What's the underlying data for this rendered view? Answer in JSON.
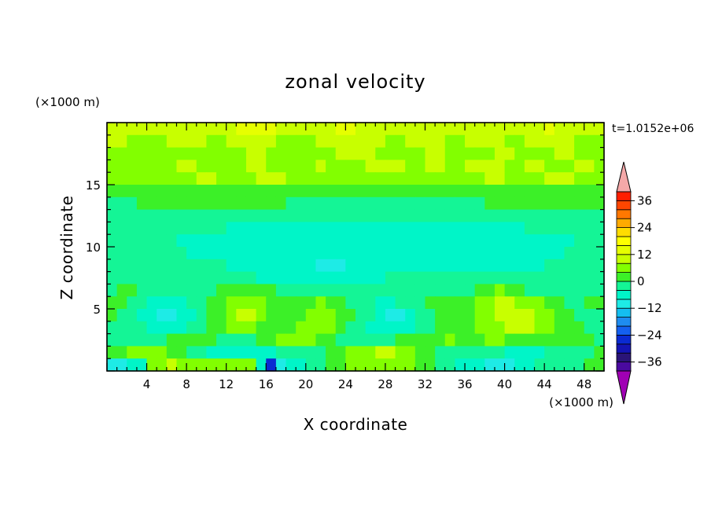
{
  "chart_data": {
    "type": "heatmap",
    "title": "zonal velocity",
    "xlabel": "X coordinate",
    "ylabel": "Z coordinate",
    "x_unit": "(×1000 m)",
    "y_unit": "(×1000 m)",
    "time_label": "t=1.0152e+06",
    "xlim": [
      0,
      50
    ],
    "ylim": [
      0,
      20
    ],
    "x_ticks": [
      4,
      8,
      12,
      16,
      20,
      24,
      28,
      32,
      36,
      40,
      44,
      48
    ],
    "y_ticks": [
      5,
      10,
      15
    ],
    "colorbar": {
      "levels": [
        -40,
        -36,
        -32,
        -28,
        -24,
        -20,
        -16,
        -12,
        -8,
        -4,
        0,
        4,
        8,
        12,
        16,
        20,
        24,
        28,
        32,
        36,
        40
      ],
      "tick_labels": [
        "36",
        "24",
        "12",
        "0",
        "−12",
        "−24",
        "−36"
      ],
      "tick_values": [
        36,
        24,
        12,
        0,
        -12,
        -24,
        -36
      ],
      "colors": [
        "#4a0aa0",
        "#2a1478",
        "#1414b4",
        "#0a2ad2",
        "#1460f0",
        "#1e8cf0",
        "#14bef0",
        "#1eebe6",
        "#00f5c8",
        "#14f596",
        "#3cf028",
        "#82ff00",
        "#c8ff00",
        "#e6ff00",
        "#ffff00",
        "#ffdc00",
        "#ffaa00",
        "#ff7800",
        "#ff4600",
        "#ff1e00"
      ],
      "under_color": "#a000b4",
      "over_color": "#f4a8a8"
    },
    "rows": [
      {
        "y": 19.5,
        "values": [
          9,
          10,
          10,
          11,
          10,
          9,
          9,
          10,
          11,
          11,
          10,
          9,
          10,
          12,
          13,
          12,
          12,
          11,
          10,
          9,
          9,
          10,
          11,
          12,
          12,
          11,
          10,
          10,
          9,
          9,
          10,
          11,
          11,
          10,
          9,
          9,
          10,
          11,
          11,
          10,
          9,
          9,
          10,
          11,
          12,
          11,
          10,
          9,
          9,
          9
        ]
      },
      {
        "y": 18.5,
        "values": [
          8,
          8,
          7,
          6,
          6,
          7,
          8,
          9,
          9,
          8,
          7,
          7,
          8,
          9,
          10,
          9,
          8,
          7,
          6,
          6,
          7,
          8,
          9,
          10,
          10,
          9,
          8,
          8,
          7,
          7,
          8,
          9,
          9,
          8,
          7,
          7,
          8,
          8,
          9,
          8,
          7,
          7,
          8,
          9,
          10,
          9,
          8,
          7,
          6,
          6
        ]
      },
      {
        "y": 17.5,
        "values": [
          6,
          6,
          5,
          5,
          6,
          6,
          7,
          7,
          6,
          6,
          5,
          5,
          6,
          7,
          8,
          8,
          7,
          6,
          6,
          5,
          5,
          6,
          7,
          8,
          9,
          9,
          8,
          7,
          6,
          6,
          7,
          7,
          8,
          8,
          7,
          6,
          6,
          7,
          7,
          8,
          8,
          7,
          6,
          6,
          7,
          8,
          8,
          7,
          6,
          6
        ]
      },
      {
        "y": 16.5,
        "values": [
          6,
          6,
          7,
          7,
          6,
          6,
          7,
          8,
          8,
          7,
          6,
          6,
          7,
          7,
          8,
          8,
          7,
          6,
          6,
          7,
          7,
          8,
          7,
          6,
          6,
          7,
          8,
          9,
          9,
          8,
          7,
          7,
          8,
          8,
          7,
          7,
          8,
          9,
          9,
          8,
          7,
          7,
          8,
          8,
          7,
          7,
          7,
          8,
          8,
          7
        ]
      },
      {
        "y": 15.5,
        "values": [
          5,
          5,
          6,
          6,
          6,
          5,
          5,
          6,
          7,
          8,
          8,
          7,
          6,
          6,
          7,
          9,
          9,
          8,
          7,
          6,
          6,
          6,
          6,
          5,
          5,
          6,
          6,
          7,
          7,
          6,
          6,
          6,
          7,
          7,
          6,
          6,
          6,
          7,
          8,
          8,
          7,
          6,
          6,
          7,
          9,
          9,
          8,
          7,
          6,
          6
        ]
      },
      {
        "y": 14.5,
        "values": [
          3,
          3,
          2,
          2,
          2,
          2,
          2,
          2,
          2,
          2,
          2,
          2,
          2,
          2,
          2,
          2,
          2,
          2,
          2,
          2,
          2,
          2,
          2,
          2,
          2,
          2,
          2,
          2,
          2,
          2,
          2,
          2,
          2,
          2,
          2,
          2,
          2,
          2,
          2,
          2,
          2,
          2,
          2,
          2,
          2,
          2,
          2,
          2,
          3,
          3
        ]
      },
      {
        "y": 13.5,
        "values": [
          -1,
          -1,
          -1,
          0,
          1,
          1,
          2,
          2,
          2,
          2,
          1,
          1,
          1,
          1,
          1,
          1,
          0,
          0,
          -1,
          -1,
          -1,
          -1,
          -1,
          -1,
          -2,
          -2,
          -2,
          -2,
          -2,
          -2,
          -2,
          -2,
          -2,
          -2,
          -1,
          -1,
          -1,
          -1,
          1,
          1,
          1,
          1,
          1,
          1,
          1,
          1,
          1,
          1,
          0,
          0
        ]
      },
      {
        "y": 12.5,
        "values": [
          -2,
          -3,
          -3,
          -3,
          -3,
          -3,
          -2,
          -2,
          -2,
          -2,
          -3,
          -3,
          -3,
          -3,
          -3,
          -3,
          -3,
          -3,
          -3,
          -3,
          -3,
          -3,
          -3,
          -3,
          -3,
          -3,
          -3,
          -3,
          -3,
          -3,
          -3,
          -3,
          -3,
          -3,
          -3,
          -3,
          -3,
          -3,
          -3,
          -3,
          -3,
          -3,
          -3,
          -3,
          -3,
          -3,
          -3,
          -3,
          -2,
          -2
        ]
      },
      {
        "y": 11.5,
        "values": [
          -3,
          -4,
          -4,
          -4,
          -4,
          -4,
          -4,
          -4,
          -4,
          -4,
          -4,
          -4,
          -5,
          -5,
          -5,
          -5,
          -5,
          -5,
          -5,
          -5,
          -5,
          -5,
          -5,
          -5,
          -5,
          -5,
          -5,
          -5,
          -5,
          -5,
          -5,
          -5,
          -5,
          -5,
          -5,
          -5,
          -5,
          -5,
          -5,
          -5,
          -5,
          -5,
          -4,
          -4,
          -4,
          -4,
          -4,
          -4,
          -4,
          -3
        ]
      },
      {
        "y": 10.5,
        "values": [
          -3,
          -4,
          -4,
          -4,
          -4,
          -4,
          -4,
          -5,
          -5,
          -5,
          -5,
          -5,
          -5,
          -5,
          -5,
          -6,
          -6,
          -6,
          -6,
          -6,
          -6,
          -6,
          -6,
          -6,
          -6,
          -6,
          -6,
          -6,
          -6,
          -6,
          -6,
          -6,
          -6,
          -6,
          -6,
          -6,
          -6,
          -6,
          -6,
          -6,
          -6,
          -5,
          -5,
          -5,
          -5,
          -5,
          -5,
          -4,
          -4,
          -4
        ]
      },
      {
        "y": 9.5,
        "values": [
          -3,
          -3,
          -4,
          -4,
          -4,
          -4,
          -4,
          -4,
          -5,
          -5,
          -5,
          -5,
          -5,
          -5,
          -5,
          -6,
          -6,
          -6,
          -6,
          -6,
          -7,
          -7,
          -7,
          -7,
          -6,
          -6,
          -6,
          -6,
          -6,
          -6,
          -6,
          -6,
          -6,
          -6,
          -6,
          -6,
          -6,
          -6,
          -6,
          -5,
          -5,
          -5,
          -5,
          -5,
          -5,
          -5,
          -4,
          -4,
          -4,
          -4
        ]
      },
      {
        "y": 8.5,
        "values": [
          -3,
          -3,
          -3,
          -3,
          -3,
          -4,
          -4,
          -4,
          -4,
          -4,
          -4,
          -4,
          -5,
          -5,
          -5,
          -6,
          -7,
          -7,
          -7,
          -7,
          -7,
          -9,
          -9,
          -9,
          -7,
          -7,
          -6,
          -6,
          -5,
          -5,
          -5,
          -5,
          -5,
          -5,
          -5,
          -5,
          -5,
          -5,
          -5,
          -5,
          -5,
          -5,
          -5,
          -5,
          -4,
          -4,
          -4,
          -4,
          -3,
          -3
        ]
      },
      {
        "y": 7.5,
        "values": [
          -2,
          -2,
          -3,
          -3,
          -3,
          -3,
          -3,
          -3,
          -3,
          -4,
          -4,
          -3,
          -2,
          -2,
          -3,
          -5,
          -5,
          -5,
          -6,
          -6,
          -7,
          -7,
          -8,
          -6,
          -5,
          -5,
          -5,
          -5,
          -4,
          -4,
          -4,
          -4,
          -4,
          -4,
          -4,
          -4,
          -4,
          -4,
          -3,
          -3,
          -2,
          -2,
          -2,
          -3,
          -3,
          -3,
          -3,
          -3,
          -2,
          -2
        ]
      },
      {
        "y": 6.5,
        "values": [
          -1,
          1,
          1,
          -2,
          -3,
          -3,
          -4,
          -4,
          -3,
          -3,
          -2,
          2,
          2,
          2,
          1,
          1,
          2,
          -2,
          -3,
          -3,
          -3,
          -3,
          -3,
          -3,
          -2,
          -1,
          -1,
          -1,
          -2,
          -2,
          -3,
          -3,
          -3,
          -3,
          -2,
          -2,
          -1,
          2,
          3,
          4,
          3,
          2,
          -1,
          -2,
          -3,
          -3,
          -2,
          -2,
          -1,
          -1
        ]
      },
      {
        "y": 5.5,
        "values": [
          1,
          1,
          -2,
          -4,
          -5,
          -5,
          -6,
          -6,
          -4,
          -2,
          1,
          3,
          5,
          6,
          6,
          5,
          3,
          3,
          2,
          2,
          3,
          4,
          3,
          1,
          -1,
          -2,
          -3,
          -5,
          -5,
          -4,
          -3,
          -2,
          1,
          2,
          3,
          2,
          3,
          5,
          7,
          8,
          8,
          7,
          6,
          4,
          3,
          1,
          -1,
          -1,
          1,
          1
        ]
      },
      {
        "y": 4.5,
        "values": [
          1,
          -1,
          -3,
          -5,
          -7,
          -9,
          -9,
          -7,
          -5,
          -3,
          1,
          3,
          6,
          8,
          8,
          6,
          3,
          2,
          2,
          3,
          5,
          6,
          5,
          3,
          1,
          -2,
          -4,
          -7,
          -9,
          -9,
          -7,
          -4,
          -1,
          2,
          2,
          1,
          2,
          5,
          7,
          8,
          9,
          9,
          8,
          6,
          4,
          2,
          1,
          -1,
          -2,
          -1
        ]
      },
      {
        "y": 3.5,
        "values": [
          -1,
          -2,
          -3,
          -4,
          -5,
          -6,
          -6,
          -5,
          -3,
          -1,
          1,
          3,
          4,
          5,
          4,
          2,
          1,
          2,
          3,
          4,
          5,
          5,
          4,
          2,
          -1,
          -3,
          -5,
          -7,
          -8,
          -8,
          -6,
          -3,
          -1,
          1,
          1,
          1,
          2,
          4,
          6,
          7,
          8,
          8,
          8,
          6,
          4,
          2,
          1,
          1,
          -1,
          -1
        ]
      },
      {
        "y": 2.5,
        "values": [
          -1,
          -3,
          -4,
          -4,
          -3,
          -2,
          1,
          2,
          3,
          2,
          1,
          -2,
          -3,
          -2,
          -1,
          1,
          2,
          4,
          5,
          5,
          4,
          2,
          1,
          -1,
          -2,
          -3,
          -3,
          -2,
          -1,
          1,
          1,
          1,
          2,
          3,
          4,
          3,
          2,
          3,
          4,
          4,
          3,
          2,
          1,
          1,
          2,
          2,
          1,
          1,
          1,
          -1
        ]
      },
      {
        "y": 1.5,
        "values": [
          1,
          2,
          4,
          5,
          5,
          4,
          3,
          1,
          -1,
          -3,
          -5,
          -6,
          -6,
          -5,
          -7,
          -7,
          -5,
          -3,
          -2,
          -2,
          -1,
          -1,
          1,
          2,
          4,
          6,
          7,
          8,
          8,
          7,
          5,
          3,
          1,
          -1,
          -3,
          -3,
          -2,
          -1,
          -2,
          -3,
          -5,
          -6,
          -6,
          -5,
          -4,
          -3,
          -2,
          -1,
          -1,
          1
        ]
      },
      {
        "y": 0.5,
        "values": [
          -9,
          -9,
          -7,
          -5,
          6,
          7,
          8,
          6,
          4,
          5,
          6,
          6,
          5,
          4,
          4,
          -5,
          -25,
          -9,
          -6,
          -5,
          -3,
          -1,
          1,
          2,
          4,
          5,
          6,
          7,
          6,
          5,
          4,
          3,
          1,
          -1,
          -3,
          -5,
          -7,
          -8,
          -9,
          -9,
          -9,
          -8,
          -6,
          -4,
          -3,
          -2,
          -1,
          -1,
          1,
          1
        ]
      }
    ]
  }
}
